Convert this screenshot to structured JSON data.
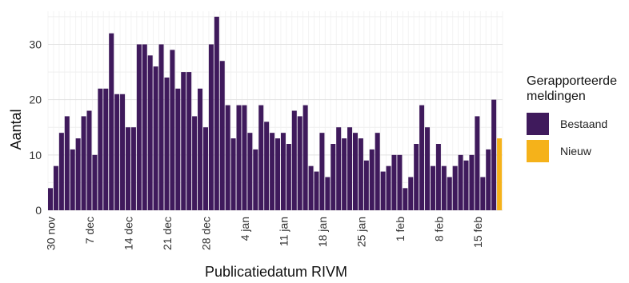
{
  "chart_data": {
    "type": "bar",
    "stacked": true,
    "xlabel": "Publicatiedatum RIVM",
    "ylabel": "Aantal",
    "ylim": [
      0,
      36
    ],
    "yticks": [
      0,
      10,
      20,
      30
    ],
    "x_tick_labels": [
      "30 nov",
      "7 dec",
      "14 dec",
      "21 dec",
      "28 dec",
      "4 jan",
      "11 jan",
      "18 jan",
      "25 jan",
      "1 feb",
      "8 feb",
      "15 feb"
    ],
    "x_tick_interval_days": 7,
    "grid": true,
    "legend_position": "right",
    "legend_title": "Gerapporteerde meldingen",
    "series": [
      {
        "name": "Bestaand",
        "color": "#3f1a5c",
        "values": [
          4,
          8,
          14,
          17,
          11,
          13,
          17,
          18,
          10,
          22,
          22,
          32,
          21,
          21,
          15,
          15,
          30,
          30,
          28,
          26,
          30,
          24,
          29,
          22,
          25,
          25,
          17,
          22,
          15,
          30,
          35,
          27,
          19,
          13,
          19,
          19,
          14,
          11,
          19,
          16,
          14,
          13,
          14,
          12,
          18,
          17,
          19,
          8,
          7,
          14,
          6,
          12,
          15,
          13,
          15,
          14,
          13,
          9,
          11,
          14,
          7,
          8,
          10,
          10,
          4,
          6,
          12,
          19,
          15,
          8,
          12,
          8,
          6,
          8,
          10,
          9,
          10,
          17,
          6,
          11,
          20,
          0
        ]
      },
      {
        "name": "Nieuw",
        "color": "#f5b21a",
        "values": [
          0,
          0,
          0,
          0,
          0,
          0,
          0,
          0,
          0,
          0,
          0,
          0,
          0,
          0,
          0,
          0,
          0,
          0,
          0,
          0,
          0,
          0,
          0,
          0,
          0,
          0,
          0,
          0,
          0,
          0,
          0,
          0,
          0,
          0,
          0,
          0,
          0,
          0,
          0,
          0,
          0,
          0,
          0,
          0,
          0,
          0,
          0,
          0,
          0,
          0,
          0,
          0,
          0,
          0,
          0,
          0,
          0,
          0,
          0,
          0,
          0,
          0,
          0,
          0,
          0,
          0,
          0,
          0,
          0,
          0,
          0,
          0,
          0,
          0,
          0,
          0,
          0,
          0,
          0,
          0,
          0,
          13
        ]
      }
    ]
  }
}
